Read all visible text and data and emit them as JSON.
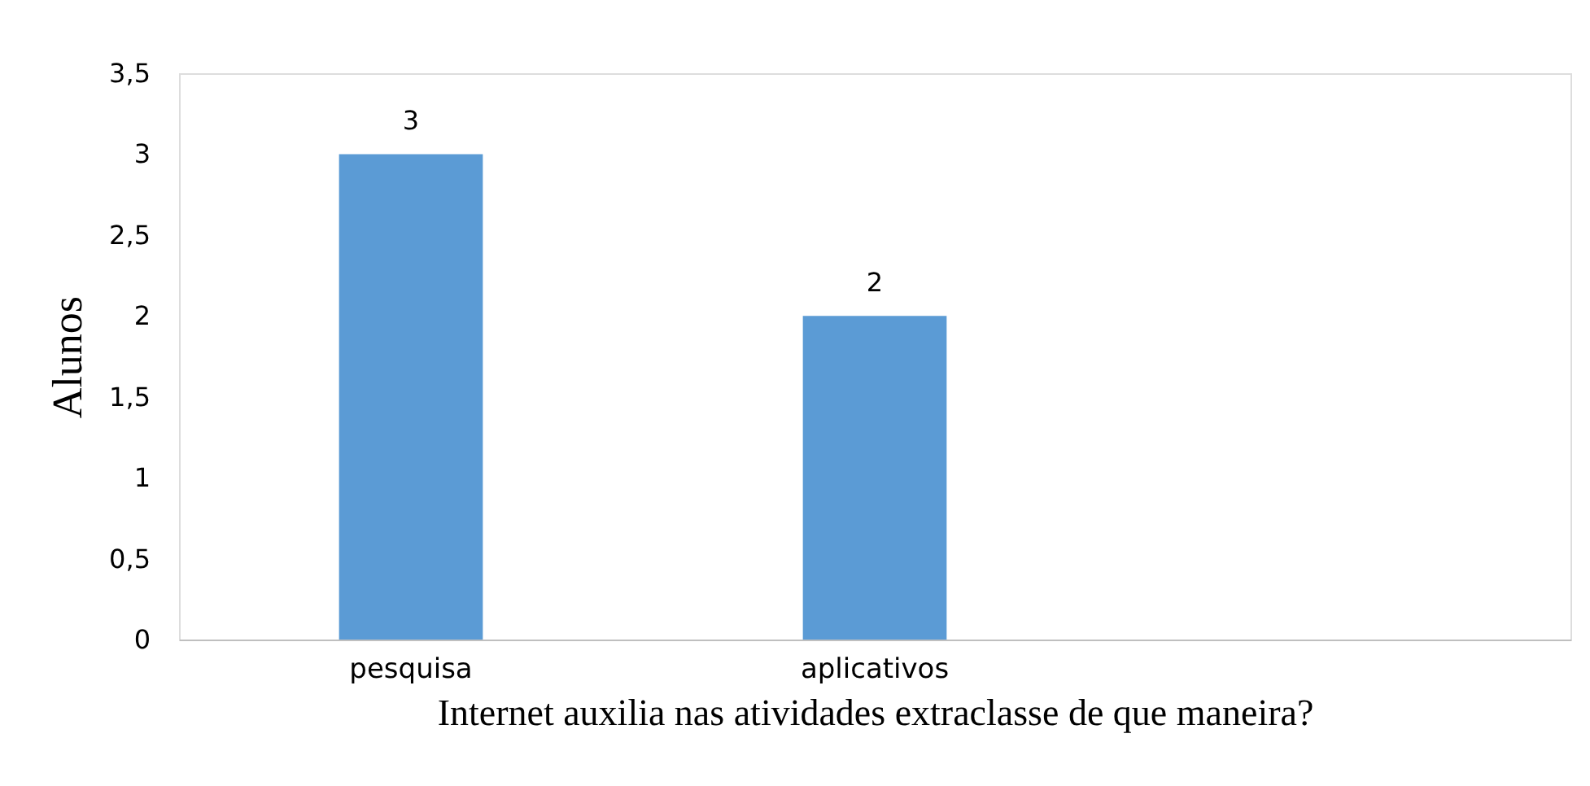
{
  "chart_data": {
    "type": "bar",
    "categories": [
      "pesquisa",
      "aplicativos",
      null
    ],
    "values": [
      3,
      2,
      null
    ],
    "color": "#5b9bd5",
    "xlabel": "Internet auxilia nas atividades extraclasse de que maneira?",
    "ylabel": "Alunos",
    "ylim": [
      0,
      3.5
    ],
    "yticks": [
      0,
      {
        "value": 0.5,
        "label": "0,5"
      },
      1,
      {
        "value": 1.5,
        "label": "1,5"
      },
      2,
      {
        "value": 2.5,
        "label": "2,5"
      },
      3,
      {
        "value": 3.5,
        "label": "3,5"
      }
    ],
    "data_labels": true,
    "grid": false
  }
}
